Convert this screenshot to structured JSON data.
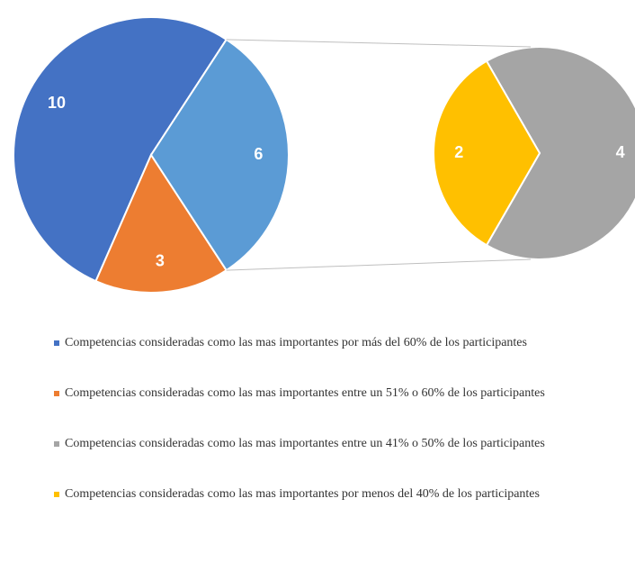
{
  "chart_data": {
    "type": "pie-of-pie",
    "pie": {
      "values": [
        10,
        3,
        6
      ],
      "colors": [
        "#4472c4",
        "#ed7d31",
        "#5b9bd5"
      ]
    },
    "sub_pie": {
      "values": [
        4,
        2
      ],
      "colors": [
        "#a5a5a5",
        "#ffc000"
      ]
    },
    "legend": [
      {
        "name": "Competencias consideradas como las mas importantes por más del 60% de los participantes",
        "color": "#4472c4"
      },
      {
        "name": "Competencias consideradas como las mas importantes entre un 51% o 60% de los participantes",
        "color": "#ed7d31"
      },
      {
        "name": "Competencias consideradas como las mas importantes entre un 41% o 50% de los participantes",
        "color": "#a5a5a5"
      },
      {
        "name": "Competencias consideradas como las mas importantes por menos del 40% de los participantes",
        "color": "#ffc000"
      }
    ]
  }
}
